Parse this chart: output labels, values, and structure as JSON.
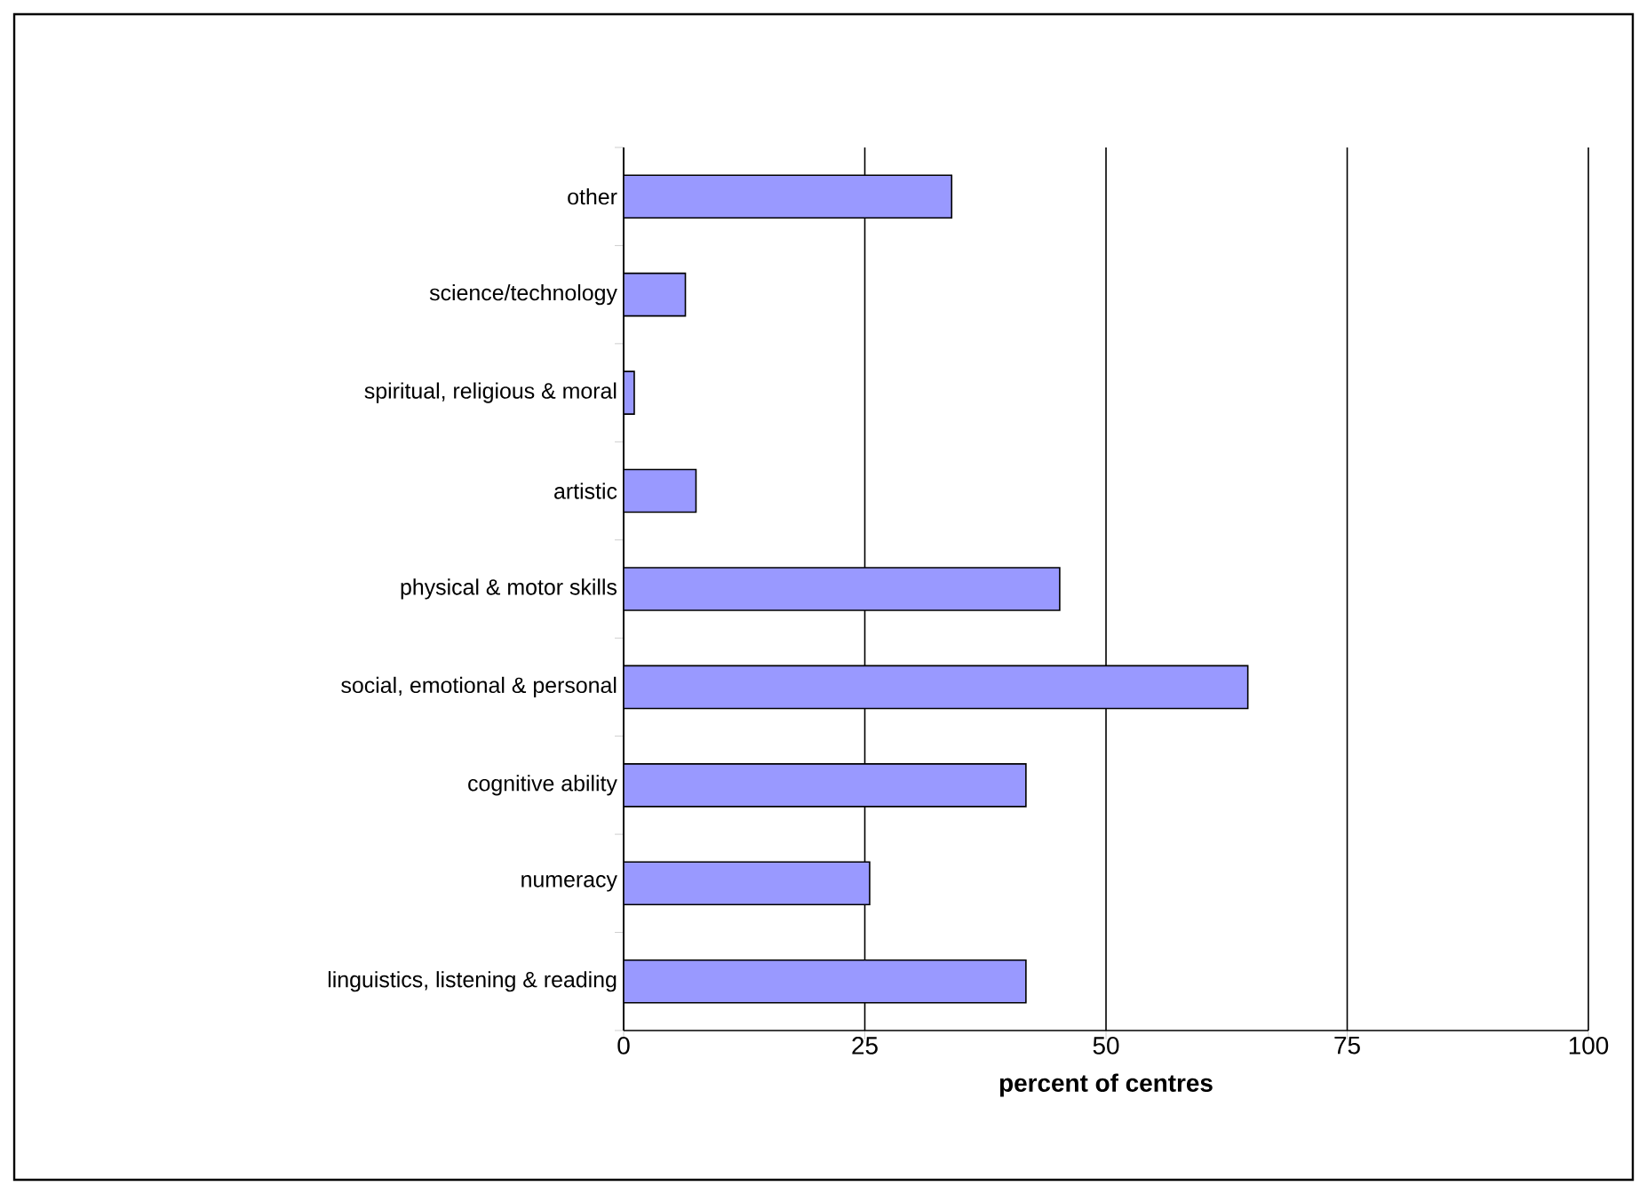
{
  "chart_data": {
    "type": "bar",
    "orientation": "horizontal",
    "xlabel": "percent of centres",
    "categories": [
      "other",
      "science/technology",
      "spiritual, religious & moral",
      "artistic",
      "physical & motor skills",
      "social, emotional & personal",
      "cognitive ability",
      "numeracy",
      "linguistics, listening & reading"
    ],
    "values": [
      34,
      6.4,
      1.1,
      7.5,
      45.2,
      64.7,
      41.7,
      25.5,
      41.7
    ],
    "color": "#9999ff",
    "xlim": [
      0,
      100
    ],
    "xticks": [
      0,
      25,
      50,
      75,
      100
    ],
    "grid": "x"
  }
}
